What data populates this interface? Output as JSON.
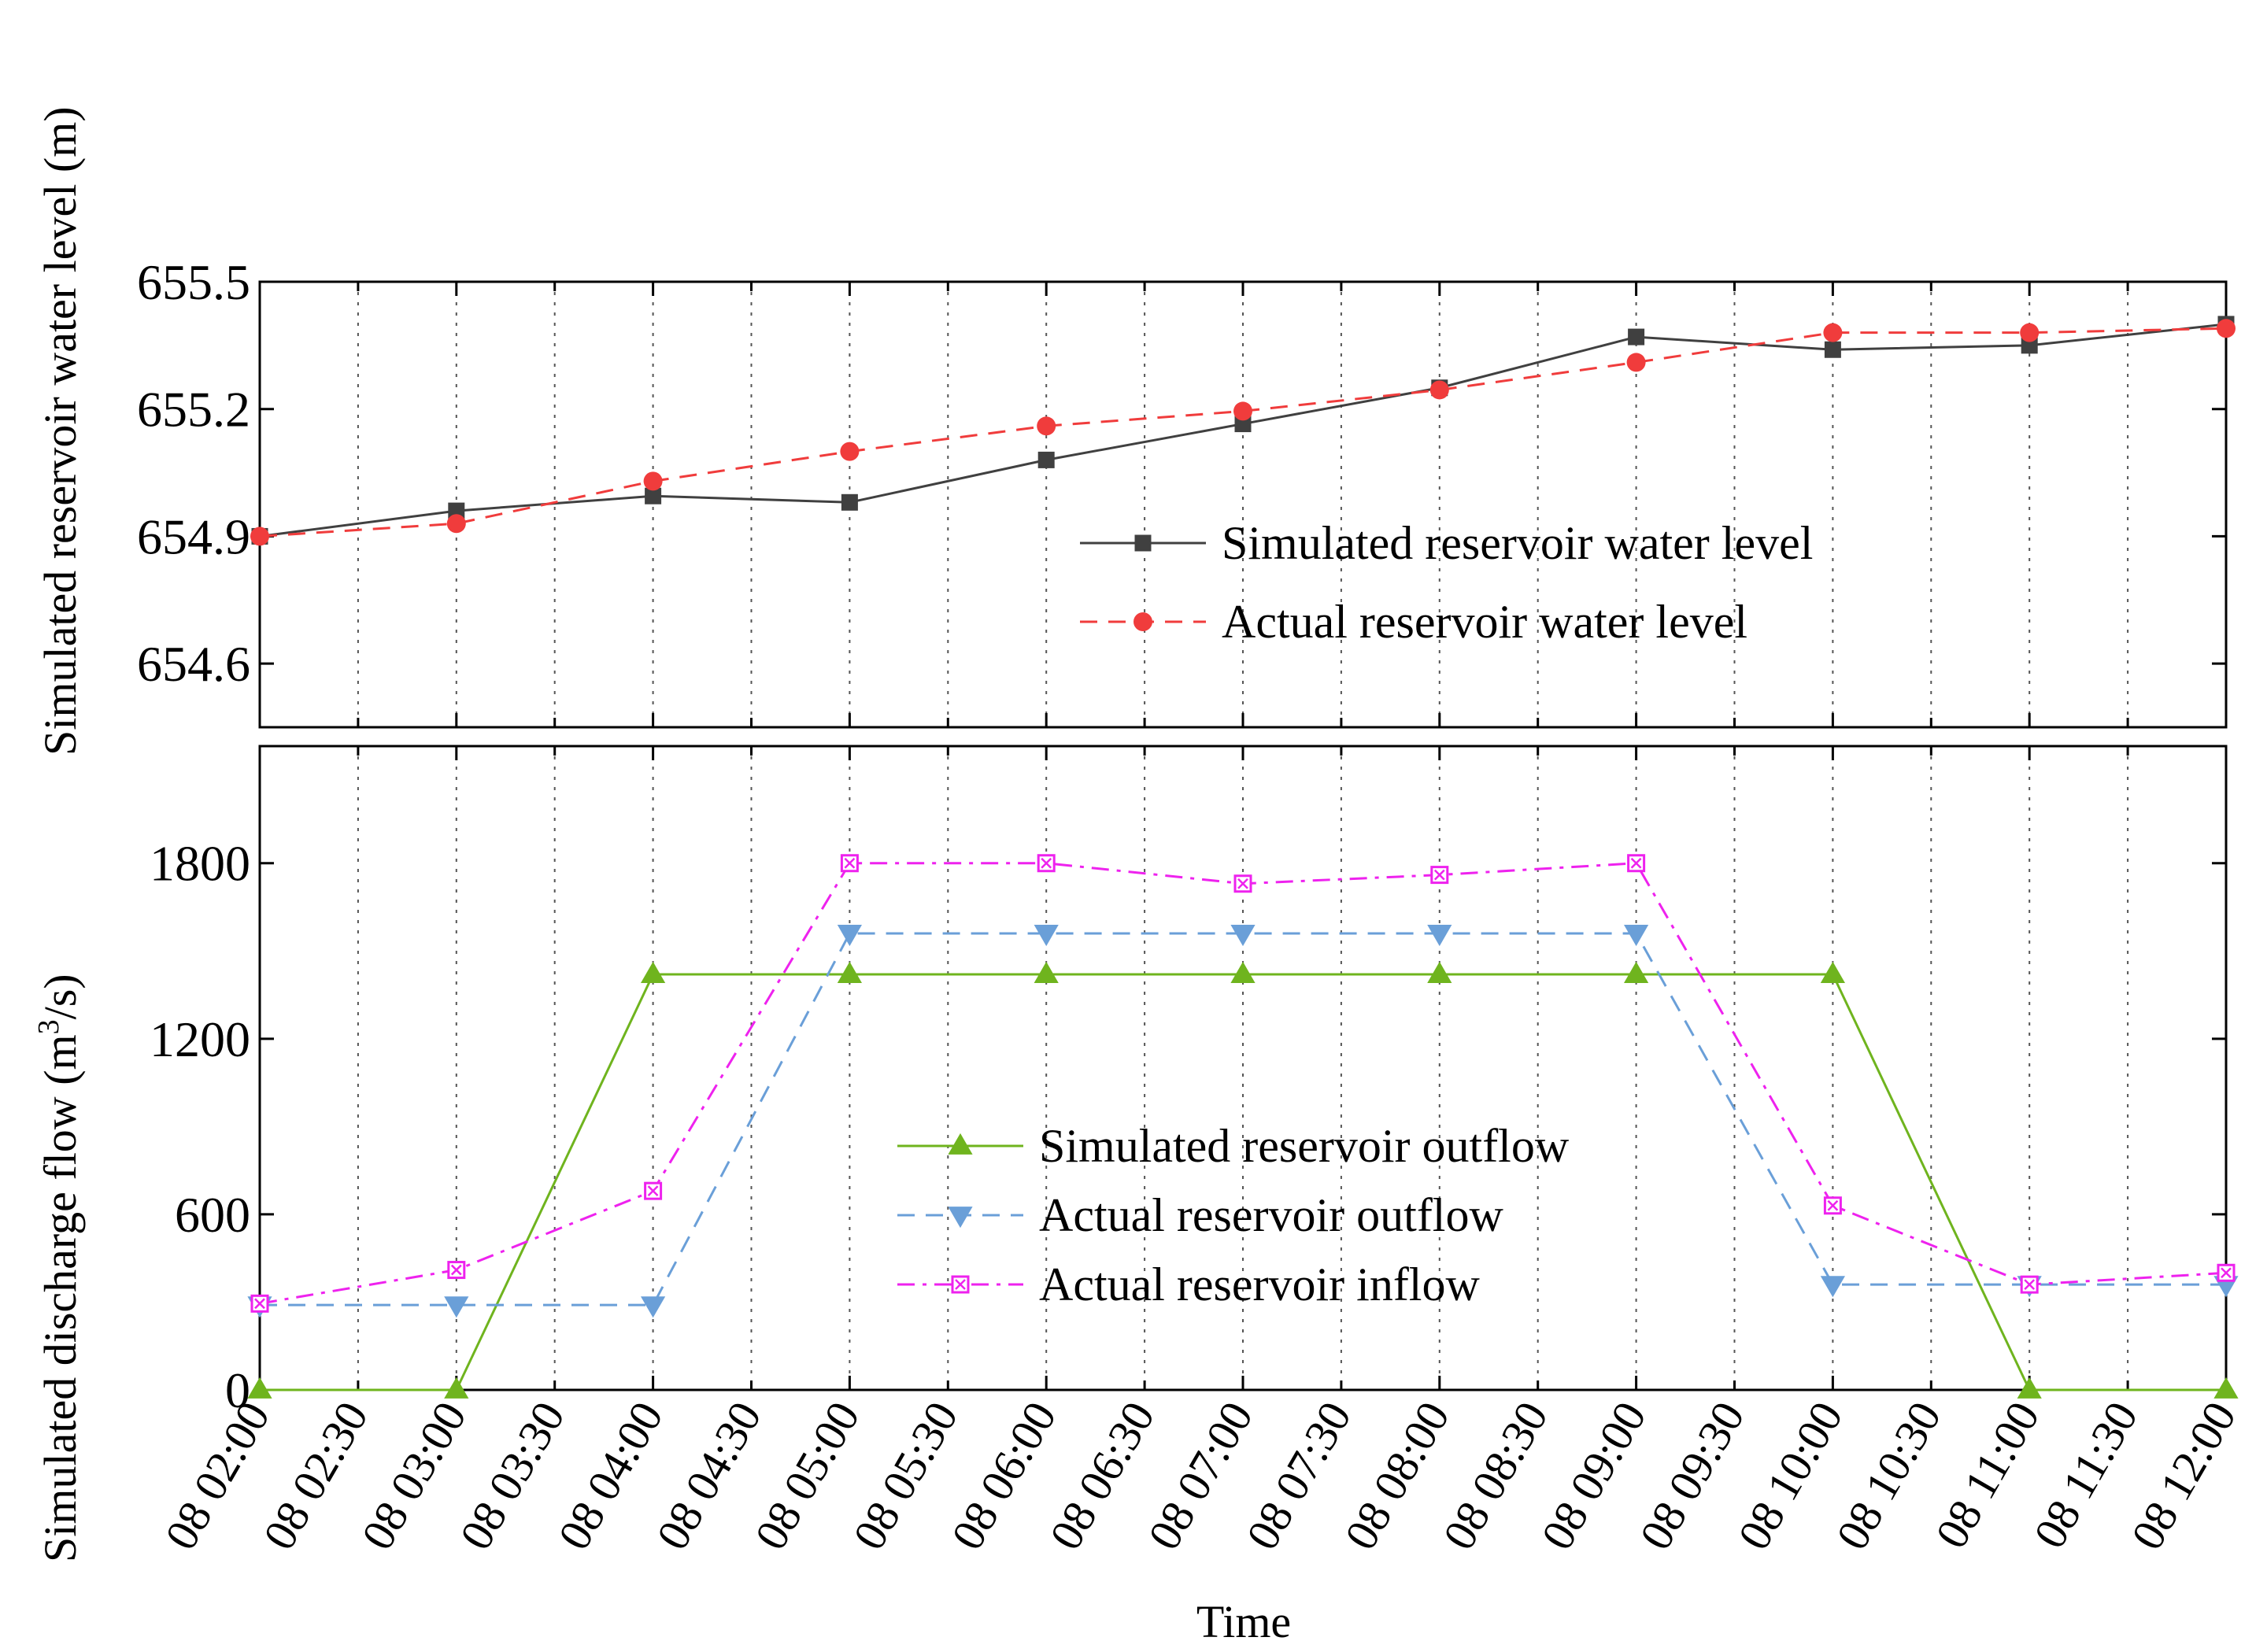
{
  "chart_data": [
    {
      "type": "line",
      "panel": "top",
      "ylabel": "Simulated reservoir water level (m)",
      "ylim": [
        654.45,
        655.5
      ],
      "yticks": [
        654.6,
        654.9,
        655.2,
        655.5
      ],
      "ytick_labels": [
        "654.6",
        "654.9",
        "655.2",
        "655.5"
      ],
      "x": [
        "08 02:00",
        "08 03:00",
        "08 04:00",
        "08 05:00",
        "08 06:00",
        "08 07:00",
        "08 08:00",
        "08 09:00",
        "08 10:00",
        "08 11:00",
        "08 12:00"
      ],
      "grid": true,
      "legend_position": "center-right",
      "series": [
        {
          "name": "Simulated reservoir water level",
          "color": "#404040",
          "marker": "square",
          "dash": "solid",
          "values": [
            654.9,
            654.96,
            654.995,
            654.98,
            655.08,
            655.165,
            655.25,
            655.37,
            655.34,
            655.35,
            655.4
          ]
        },
        {
          "name": "Actual reservoir water level",
          "color": "#f03c3c",
          "marker": "circle",
          "dash": "dashed",
          "values": [
            654.9,
            654.93,
            655.03,
            655.1,
            655.16,
            655.195,
            655.245,
            655.31,
            655.38,
            655.38,
            655.39
          ]
        }
      ]
    },
    {
      "type": "line",
      "panel": "bottom",
      "ylabel": "Simulated discharge flow (m³/s)",
      "ylim": [
        0,
        2200
      ],
      "yticks": [
        0,
        600,
        1200,
        1800
      ],
      "ytick_labels": [
        "0",
        "600",
        "1200",
        "1800"
      ],
      "x": [
        "08 02:00",
        "08 03:00",
        "08 04:00",
        "08 05:00",
        "08 06:00",
        "08 07:00",
        "08 08:00",
        "08 09:00",
        "08 10:00",
        "08 11:00",
        "08 12:00"
      ],
      "xlabel": "Time",
      "xtick_labels": [
        "08 02:00",
        "08 02:30",
        "08 03:00",
        "08 03:30",
        "08 04:00",
        "08 04:30",
        "08 05:00",
        "08 05:30",
        "08 06:00",
        "08 06:30",
        "08 07:00",
        "08 07:30",
        "08 08:00",
        "08 08:30",
        "08 09:00",
        "08 09:30",
        "08 10:00",
        "08 10:30",
        "08 11:00",
        "08 11:30",
        "08 12:00"
      ],
      "grid": true,
      "legend_position": "center",
      "series": [
        {
          "name": "Simulated reservoir outflow",
          "color": "#6fb41e",
          "marker": "triangle-up",
          "dash": "solid",
          "values": [
            0,
            0,
            1420,
            1420,
            1420,
            1420,
            1420,
            1420,
            1420,
            0,
            0
          ]
        },
        {
          "name": "Actual reservoir outflow",
          "color": "#6a9fd8",
          "marker": "triangle-down",
          "dash": "dashed",
          "values": [
            290,
            290,
            290,
            1560,
            1560,
            1560,
            1560,
            1560,
            360,
            360,
            360
          ]
        },
        {
          "name": "Actual reservoir inflow",
          "color": "#ee22ee",
          "marker": "square-open",
          "dash": "dashdot",
          "values": [
            295,
            410,
            680,
            1800,
            1800,
            1730,
            1760,
            1800,
            630,
            360,
            400
          ]
        }
      ]
    }
  ],
  "ylabel_superscript_text": {
    "prefix": "Simulated discharge flow (m",
    "sup": "3",
    "suffix": "/s) "
  }
}
